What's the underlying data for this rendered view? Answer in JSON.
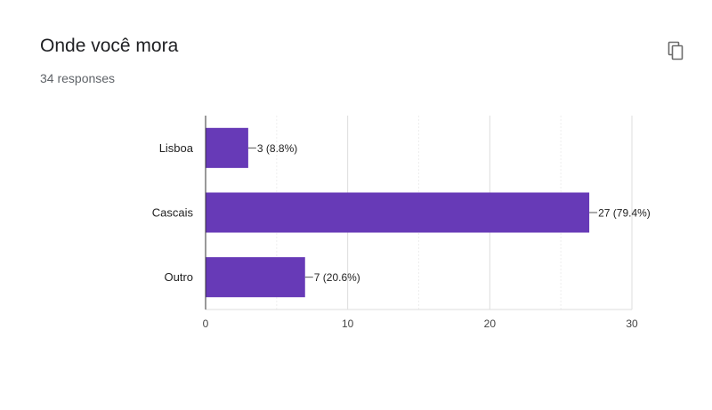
{
  "header": {
    "title": "Onde você mora",
    "responses": "34 responses"
  },
  "icons": {
    "copy": "copy-icon"
  },
  "colors": {
    "bar": "#673ab7",
    "grid": "#e6e6e6",
    "axis": "#333333"
  },
  "chart_data": {
    "type": "bar",
    "orientation": "horizontal",
    "categories": [
      "Lisboa",
      "Cascais",
      "Outro"
    ],
    "values": [
      3,
      27,
      7
    ],
    "data_labels": [
      "3 (8.8%)",
      "27 (79.4%)",
      "7 (20.6%)"
    ],
    "xlim": [
      0,
      30
    ],
    "xticks": [
      0,
      10,
      20,
      30
    ],
    "title": "",
    "xlabel": "",
    "ylabel": "",
    "grid": true,
    "legend": "none"
  }
}
